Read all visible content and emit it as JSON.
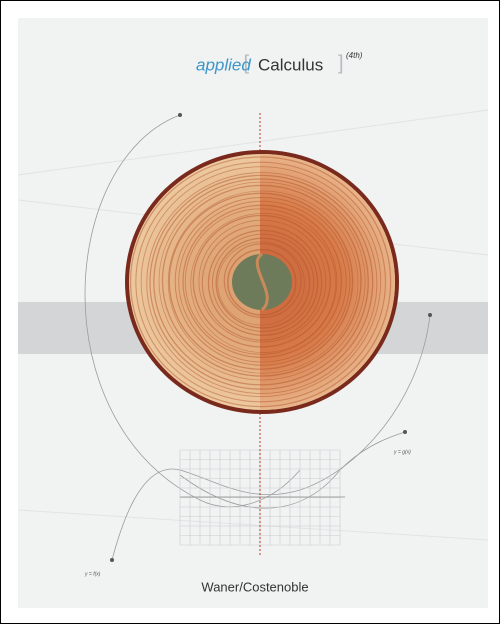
{
  "cover": {
    "title": {
      "bracket_open": "[",
      "word1": "applied",
      "word2": "Calculus",
      "bracket_close": "]",
      "edition": "(4th)"
    },
    "labels": [
      "y = f(x)",
      "y = g(x)"
    ],
    "author": "Waner/Costenoble"
  }
}
